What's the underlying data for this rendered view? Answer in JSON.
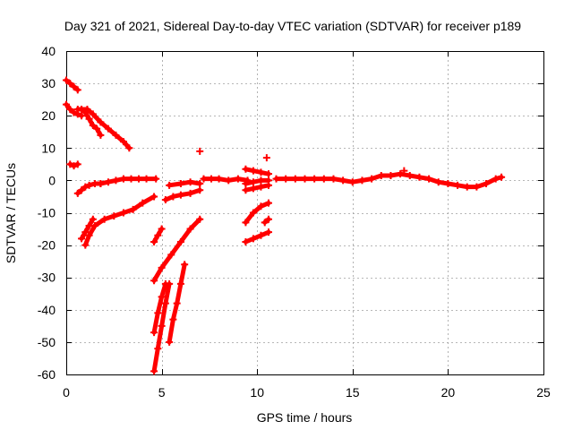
{
  "chart_data": {
    "type": "scatter",
    "title": "Day 321 of 2021, Sidereal Day-to-day VTEC variation (SDTVAR) for receiver p189",
    "xlabel": "GPS time / hours",
    "ylabel": "SDTVAR / TECUs",
    "xlim": [
      0,
      25
    ],
    "ylim": [
      -60,
      40
    ],
    "xticks": [
      0,
      5,
      10,
      15,
      20,
      25
    ],
    "yticks": [
      -60,
      -50,
      -40,
      -30,
      -20,
      -10,
      0,
      10,
      20,
      30,
      40
    ],
    "grid": true,
    "marker": "+",
    "color": "#ff0000",
    "series": [
      {
        "x": [
          0.0,
          0.2,
          0.4,
          0.6
        ],
        "y": [
          31,
          30,
          29,
          28
        ]
      },
      {
        "x": [
          0.0,
          0.2,
          0.4,
          0.6,
          0.8
        ],
        "y": [
          23.5,
          22,
          21,
          20.5,
          20
        ]
      },
      {
        "x": [
          0.6,
          0.8,
          1.0,
          1.2,
          1.4,
          1.6,
          1.8
        ],
        "y": [
          22,
          22,
          21,
          19,
          17,
          16,
          14
        ]
      },
      {
        "x": [
          0.8,
          1.1,
          1.4,
          1.8,
          2.2,
          2.6,
          3.0,
          3.3
        ],
        "y": [
          22,
          22,
          20.5,
          18,
          16,
          14,
          12,
          10
        ]
      },
      {
        "x": [
          0.2,
          0.4,
          0.6
        ],
        "y": [
          5,
          4.5,
          5
        ]
      },
      {
        "x": [
          0.6,
          0.8,
          1.0,
          1.2,
          1.5,
          1.8
        ],
        "y": [
          -4,
          -3,
          -2,
          -1.5,
          -1,
          -1
        ]
      },
      {
        "x": [
          1.8,
          2.2,
          2.6,
          3.0,
          3.4,
          3.8,
          4.2,
          4.7
        ],
        "y": [
          -1,
          -0.5,
          0,
          0.5,
          0.5,
          0.5,
          0.5,
          0.5
        ]
      },
      {
        "x": [
          0.8,
          1.0,
          1.2,
          1.4
        ],
        "y": [
          -18,
          -16,
          -14,
          -12
        ]
      },
      {
        "x": [
          1.0,
          1.2,
          1.5,
          2.0,
          2.5,
          3.0,
          3.5,
          4.0,
          4.6
        ],
        "y": [
          -20,
          -17,
          -14,
          -12,
          -11,
          -10,
          -9,
          -7,
          -5
        ]
      },
      {
        "x": [
          4.6,
          4.8,
          5.0
        ],
        "y": [
          -19,
          -17,
          -15
        ]
      },
      {
        "x": [
          4.6,
          5.0,
          5.5,
          6.0,
          6.5,
          7.0
        ],
        "y": [
          -31,
          -27,
          -23,
          -19,
          -15,
          -12
        ]
      },
      {
        "x": [
          4.6,
          4.8,
          5.0,
          5.2
        ],
        "y": [
          -47,
          -41,
          -36,
          -32
        ]
      },
      {
        "x": [
          4.6,
          4.8,
          5.0,
          5.2,
          5.4
        ],
        "y": [
          -59,
          -52,
          -45,
          -38,
          -32
        ]
      },
      {
        "x": [
          5.4,
          5.6,
          5.8,
          6.0,
          6.2
        ],
        "y": [
          -50,
          -43,
          -38,
          -32,
          -26
        ]
      },
      {
        "x": [
          5.2,
          5.6,
          6.0,
          6.5,
          7.0
        ],
        "y": [
          -6,
          -5,
          -4.5,
          -4,
          -3
        ]
      },
      {
        "x": [
          5.4,
          6.0,
          6.5,
          7.0
        ],
        "y": [
          -1.5,
          -1,
          -0.5,
          -1
        ]
      },
      {
        "x": [
          7.0
        ],
        "y": [
          9
        ]
      },
      {
        "x": [
          7.2,
          7.6,
          8.0,
          8.5,
          9.0,
          9.5
        ],
        "y": [
          0.5,
          0.5,
          0.5,
          0,
          0.5,
          0
        ]
      },
      {
        "x": [
          9.4,
          9.8,
          10.2,
          10.6
        ],
        "y": [
          3.5,
          3,
          2.5,
          2
        ]
      },
      {
        "x": [
          9.4,
          9.8,
          10.2,
          10.6
        ],
        "y": [
          -1,
          -0.5,
          0,
          0
        ]
      },
      {
        "x": [
          9.4,
          9.8,
          10.2,
          10.6
        ],
        "y": [
          -3,
          -2.5,
          -2,
          -1.5
        ]
      },
      {
        "x": [
          10.5
        ],
        "y": [
          7
        ]
      },
      {
        "x": [
          9.4,
          9.8,
          10.2,
          10.6
        ],
        "y": [
          -13,
          -10,
          -8,
          -7
        ]
      },
      {
        "x": [
          10.4,
          10.6
        ],
        "y": [
          -13,
          -12
        ]
      },
      {
        "x": [
          9.4,
          9.8,
          10.2,
          10.6
        ],
        "y": [
          -19,
          -18,
          -17,
          -16
        ]
      },
      {
        "x": [
          11.0,
          11.5,
          12,
          12.5,
          13,
          13.5,
          14,
          14.5,
          15,
          15.5,
          16,
          16.5,
          17,
          17.5,
          18,
          18.5,
          19,
          19.5,
          20,
          20.5,
          21,
          21.5,
          22,
          22.5,
          22.8
        ],
        "y": [
          0.5,
          0.5,
          0.5,
          0.5,
          0.5,
          0.5,
          0.5,
          0,
          -0.5,
          0,
          0.5,
          1.5,
          1.5,
          2,
          1.5,
          1,
          0.5,
          -0.5,
          -1,
          -1.5,
          -2,
          -2,
          -1,
          0.5,
          1
        ]
      },
      {
        "x": [
          17.7
        ],
        "y": [
          3
        ]
      }
    ]
  }
}
